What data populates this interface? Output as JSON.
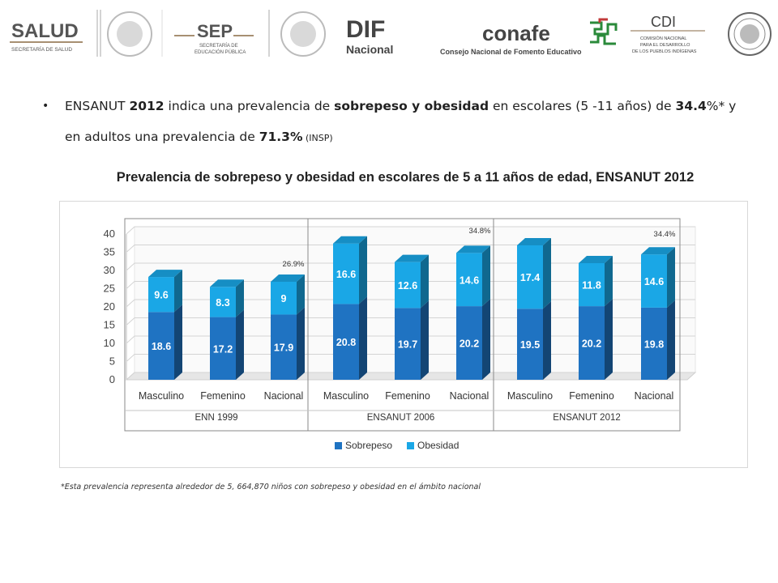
{
  "header": {
    "salud": {
      "title": "SALUD",
      "subtitle": "SECRETARÍA DE SALUD"
    },
    "sep": {
      "title": "SEP",
      "subtitle_line1": "SECRETARÍA DE",
      "subtitle_line2": "EDUCACIÓN PÚBLICA"
    },
    "dif": {
      "title": "DIF",
      "subtitle": "Nacional"
    },
    "conafe": {
      "title": "conafe",
      "subtitle": "Consejo Nacional de Fomento Educativo"
    },
    "cdi": {
      "title": "CDI",
      "line1": "COMISIÓN NACIONAL",
      "line2": "PARA EL DESARROLLO",
      "line3": "DE LOS PUEBLOS INDÍGENAS"
    }
  },
  "bullet": {
    "t1": "ENSANUT ",
    "b1": "2012",
    "t2": " indica una prevalencia de ",
    "b2": "sobrepeso y obesidad",
    "t3": " en escolares (5 -11 años) de ",
    "b3": "34.4",
    "t4": "%* y en adultos una prevalencia de ",
    "b4": "71.3%",
    "small": " (INSP)"
  },
  "chart_title": "Prevalencia de sobrepeso y obesidad en escolares de 5 a 11 años de edad, ENSANUT 2012",
  "footnote": "*Esta prevalencia representa alrededor de 5, 664,870 niños con sobrepeso y obesidad en el ámbito nacional",
  "colors": {
    "sobrepeso": "#1f73c2",
    "obesidad": "#1aa7e6"
  },
  "chart_data": {
    "type": "bar",
    "stacked": true,
    "ylim": [
      0,
      40
    ],
    "yticks": [
      0,
      5,
      10,
      15,
      20,
      25,
      30,
      35,
      40
    ],
    "groups": [
      {
        "name": "ENN 1999",
        "categories": [
          "Masculino",
          "Femenino",
          "Nacional"
        ],
        "total_label": "26.9%"
      },
      {
        "name": "ENSANUT 2006",
        "categories": [
          "Masculino",
          "Femenino",
          "Nacional"
        ],
        "total_label": "34.8%"
      },
      {
        "name": "ENSANUT 2012",
        "categories": [
          "Masculino",
          "Femenino",
          "Nacional"
        ],
        "total_label": "34.4%"
      }
    ],
    "series": [
      {
        "name": "Sobrepeso",
        "values": [
          18.6,
          17.2,
          17.9,
          20.8,
          19.7,
          20.2,
          19.5,
          20.2,
          19.8
        ],
        "labels": [
          "18.6",
          "17.2",
          "17.9",
          "20.8",
          "19.7",
          "20.2",
          "19.5",
          "20.2",
          "19.8"
        ]
      },
      {
        "name": "Obesidad",
        "values": [
          9.6,
          8.3,
          9,
          16.6,
          12.6,
          14.6,
          17.4,
          11.8,
          14.6
        ],
        "labels": [
          "9.6",
          "8.3",
          "9",
          "16.6",
          "12.6",
          "14.6",
          "17.4",
          "11.8",
          "14.6"
        ]
      }
    ],
    "legend": [
      "Sobrepeso",
      "Obesidad"
    ],
    "legend_position": "bottom"
  }
}
